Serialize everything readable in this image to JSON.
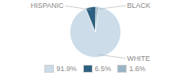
{
  "chart_data": {
    "type": "pie",
    "categories": [
      "WHITE",
      "HISPANIC",
      "BLACK"
    ],
    "values": [
      91.9,
      6.5,
      1.6
    ],
    "value_labels": [
      "91.9%",
      "6.5%",
      "1.6%"
    ],
    "colors": [
      "#ccdce8",
      "#2d6080",
      "#9ab4c4"
    ],
    "legend": "bottom"
  }
}
